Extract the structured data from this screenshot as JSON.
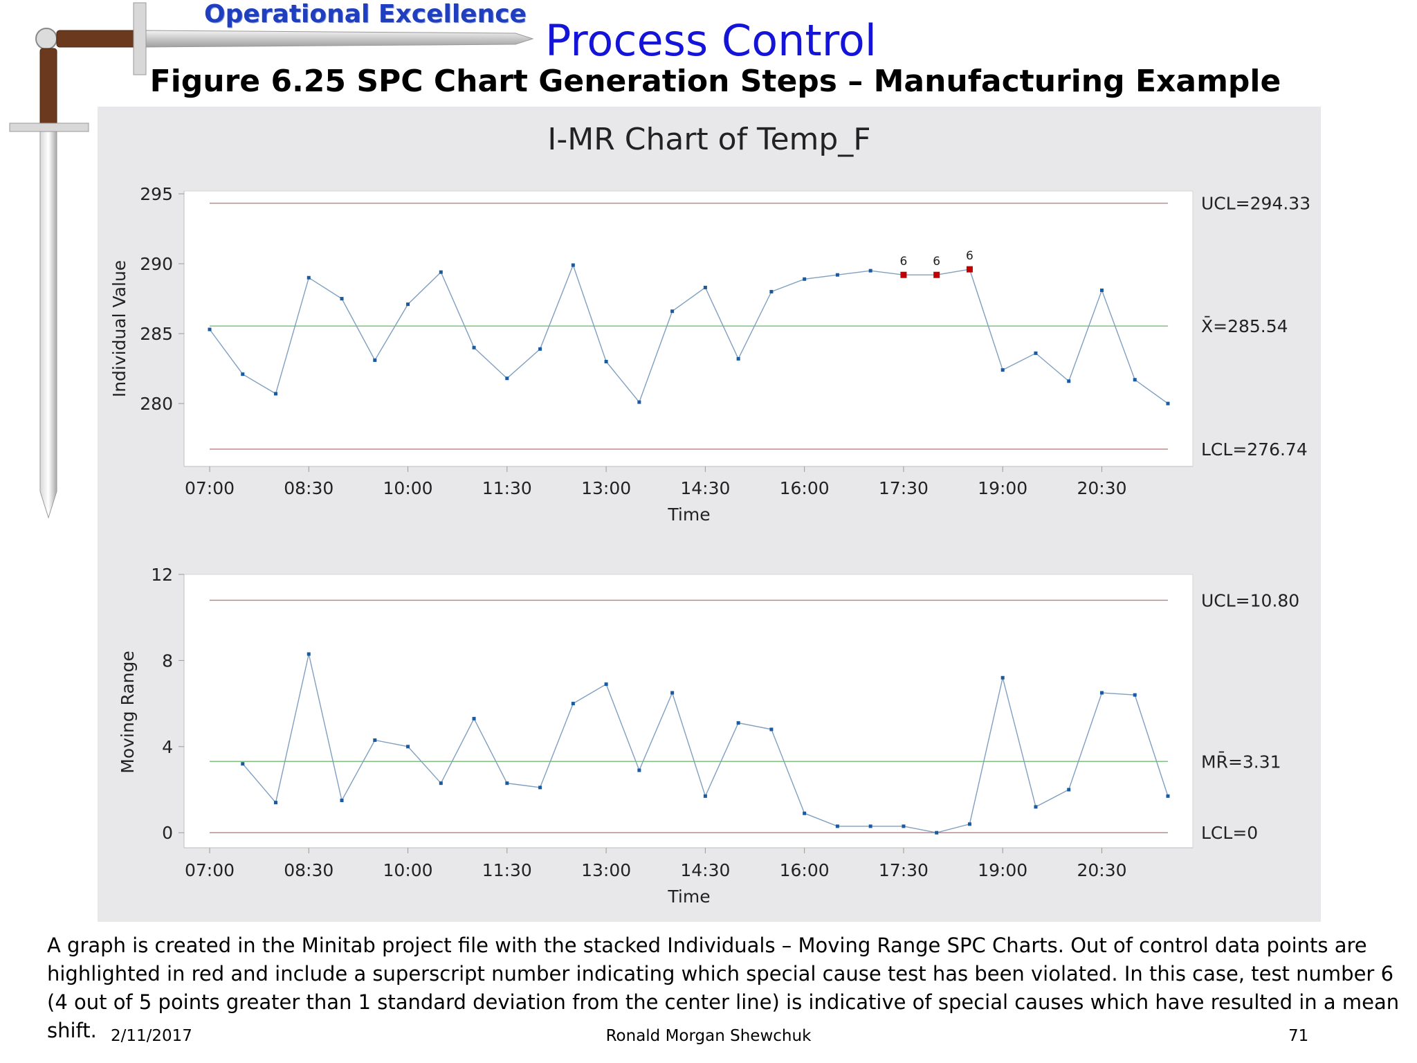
{
  "header": {
    "brand": "Operational Excellence",
    "title": "Process Control",
    "figure_title": "Figure 6.25  SPC Chart Generation Steps – Manufacturing Example"
  },
  "chart_data": [
    {
      "type": "line",
      "title": "I-MR Chart of Temp_F",
      "xlabel": "Time",
      "ylabel": "Individual Value",
      "x_ticks": [
        "07:00",
        "08:30",
        "10:00",
        "11:30",
        "13:00",
        "14:30",
        "16:00",
        "17:30",
        "19:00",
        "20:30"
      ],
      "y_ticks": [
        280,
        285,
        290,
        295
      ],
      "ylim": [
        275.5,
        295.2
      ],
      "x": [
        "07:00",
        "07:30",
        "08:00",
        "08:30",
        "09:00",
        "09:30",
        "10:00",
        "10:30",
        "11:00",
        "11:30",
        "12:00",
        "12:30",
        "13:00",
        "13:30",
        "14:00",
        "14:30",
        "15:00",
        "15:30",
        "16:00",
        "16:30",
        "17:00",
        "17:30",
        "18:00",
        "18:30",
        "19:00",
        "19:30",
        "20:00",
        "20:30",
        "21:00",
        "21:30"
      ],
      "values": [
        285.3,
        282.1,
        280.7,
        289.0,
        287.5,
        283.1,
        287.1,
        289.4,
        284.0,
        281.8,
        283.9,
        289.9,
        283.0,
        280.1,
        286.6,
        288.3,
        283.2,
        288.0,
        288.9,
        289.2,
        289.5,
        289.2,
        289.2,
        289.6,
        282.4,
        283.6,
        281.6,
        288.1,
        281.7,
        280.0
      ],
      "control_limits": {
        "UCL": 294.33,
        "center": 285.54,
        "LCL": 276.74
      },
      "limit_labels": {
        "UCL": "UCL=294.33",
        "center": "X̄=285.54",
        "LCL": "LCL=276.74"
      },
      "out_of_control": [
        {
          "x": "17:30",
          "test": "6"
        },
        {
          "x": "18:00",
          "test": "6"
        },
        {
          "x": "18:30",
          "test": "6"
        }
      ],
      "colors": {
        "series": "#7f9fc0",
        "point": "#1a5aa0",
        "flag": "#c00000",
        "ucl_lcl": "#c08888",
        "center": "#80c080"
      }
    },
    {
      "type": "line",
      "title": "",
      "xlabel": "Time",
      "ylabel": "Moving Range",
      "x_ticks": [
        "07:00",
        "08:30",
        "10:00",
        "11:30",
        "13:00",
        "14:30",
        "16:00",
        "17:30",
        "19:00",
        "20:30"
      ],
      "y_ticks": [
        0,
        4,
        8,
        12
      ],
      "ylim": [
        -0.7,
        12
      ],
      "x": [
        "07:30",
        "08:00",
        "08:30",
        "09:00",
        "09:30",
        "10:00",
        "10:30",
        "11:00",
        "11:30",
        "12:00",
        "12:30",
        "13:00",
        "13:30",
        "14:00",
        "14:30",
        "15:00",
        "15:30",
        "16:00",
        "16:30",
        "17:00",
        "17:30",
        "18:00",
        "18:30",
        "19:00",
        "19:30",
        "20:00",
        "20:30",
        "21:00",
        "21:30"
      ],
      "values": [
        3.2,
        1.4,
        8.3,
        1.5,
        4.3,
        4.0,
        2.3,
        5.3,
        2.3,
        2.1,
        6.0,
        6.9,
        2.9,
        6.5,
        1.7,
        5.1,
        4.8,
        0.9,
        0.3,
        0.3,
        0.3,
        0.0,
        0.4,
        7.2,
        1.2,
        2.0,
        6.5,
        6.4,
        1.7
      ],
      "control_limits": {
        "UCL": 10.8,
        "center": 3.31,
        "LCL": 0
      },
      "limit_labels": {
        "UCL": "UCL=10.80",
        "center": "MR̄=3.31",
        "LCL": "LCL=0"
      },
      "colors": {
        "series": "#7f9fc0",
        "point": "#1a5aa0",
        "ucl_lcl": "#c08888",
        "center": "#80c080"
      }
    }
  ],
  "caption": {
    "line1": "A graph is created in the Minitab project file with the stacked Individuals – Moving Range SPC Charts.  Out of control data points are",
    "line2": "highlighted in red and include a superscript number indicating which special cause test has been violated.  In this case, test number 6",
    "line3": "(4 out of 5 points greater than 1 standard deviation from the center line) is indicative of special causes which have resulted in a mean shift."
  },
  "footer": {
    "date": "2/11/2017",
    "author": "Ronald Morgan Shewchuk",
    "page": "71"
  },
  "icons": {
    "logo": "sword-icon"
  }
}
